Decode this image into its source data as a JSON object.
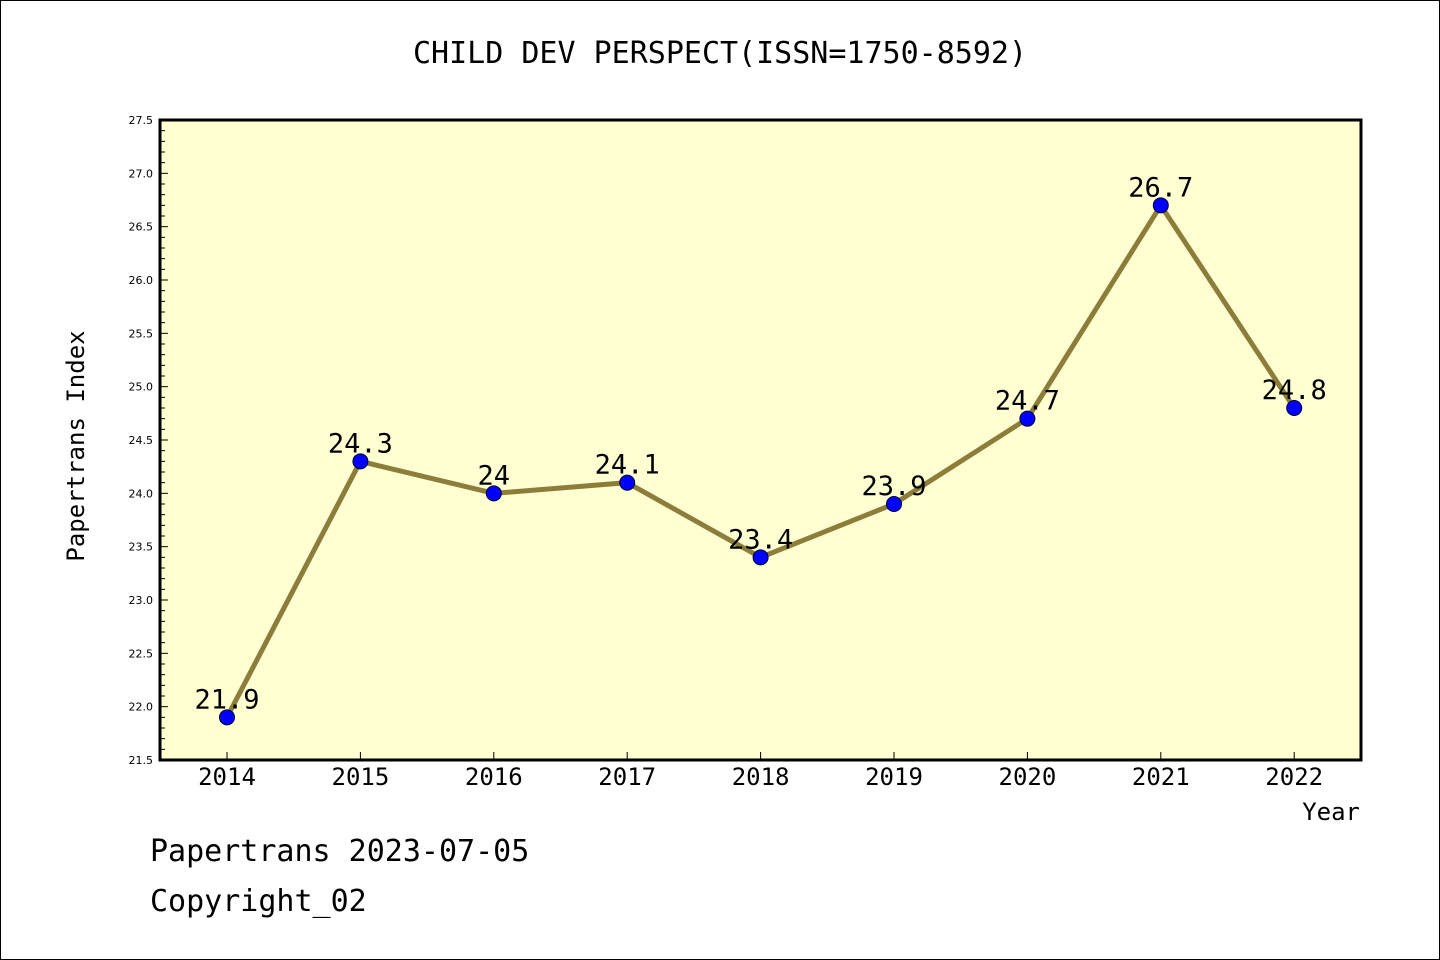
{
  "chart_data": {
    "type": "line",
    "title": "CHILD DEV PERSPECT(ISSN=1750-8592)",
    "xlabel": "Year",
    "ylabel": "Papertrans Index",
    "categories": [
      "2014",
      "2015",
      "2016",
      "2017",
      "2018",
      "2019",
      "2020",
      "2021",
      "2022"
    ],
    "series": [
      {
        "values": [
          21.9,
          24.3,
          24,
          24.1,
          23.4,
          23.9,
          24.7,
          26.7,
          24.8
        ],
        "labels": [
          "21.9",
          "24.3",
          "24",
          "24.1",
          "23.4",
          "23.9",
          "24.7",
          "26.7",
          "24.8"
        ]
      }
    ],
    "ylim": [
      21.5,
      27.5
    ],
    "yticks": [
      "21.5",
      "22.0",
      "22.5",
      "23.0",
      "23.5",
      "24.0",
      "24.5",
      "25.0",
      "25.5",
      "26.0",
      "26.5",
      "27.0",
      "27.5"
    ],
    "grid": false,
    "colors": {
      "plot_background": "#ffffd2",
      "line": "#8c7e3a",
      "marker": "#0000ff"
    }
  },
  "footer": {
    "date_line": "Papertrans 2023-07-05",
    "copyright": "Copyright_02"
  }
}
